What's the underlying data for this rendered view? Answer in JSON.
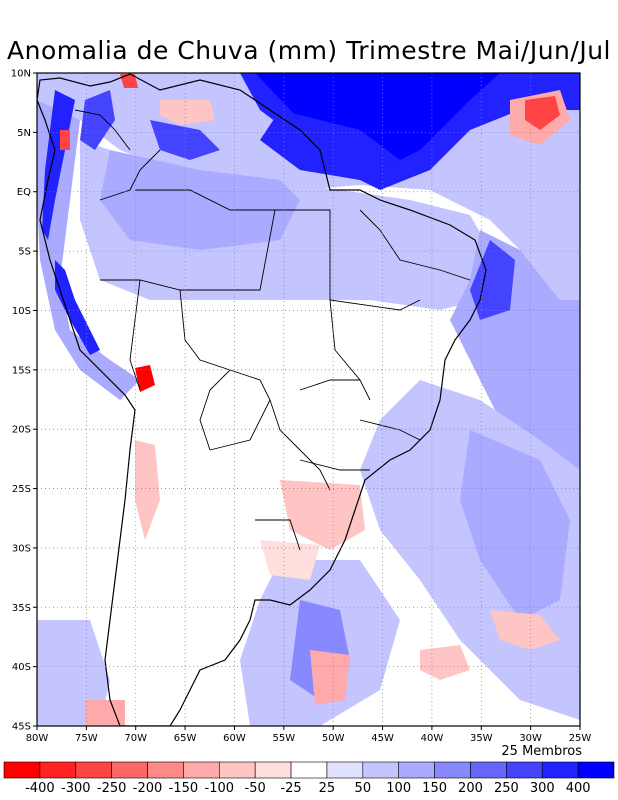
{
  "title": "Anomalia de Chuva (mm) Trimestre Mai/Jun/Jul",
  "footer_note": "25 Membros",
  "map": {
    "lon_range": [
      -80,
      -25
    ],
    "lat_range": [
      -45,
      10
    ],
    "lon_ticks": [
      "80W",
      "75W",
      "70W",
      "65W",
      "60W",
      "55W",
      "50W",
      "45W",
      "40W",
      "35W",
      "30W",
      "25W"
    ],
    "lat_ticks": [
      "10N",
      "5N",
      "EQ",
      "5S",
      "10S",
      "15S",
      "20S",
      "25S",
      "30S",
      "35S",
      "40S",
      "45S"
    ]
  },
  "colorbar": {
    "labels": [
      "-400",
      "-300",
      "-250",
      "-200",
      "-150",
      "-100",
      "-50",
      "-25",
      "25",
      "50",
      "100",
      "150",
      "200",
      "250",
      "300",
      "400"
    ],
    "colors": [
      "#ff0000",
      "#ff2222",
      "#ff4444",
      "#ff6666",
      "#ff8888",
      "#ffaaaa",
      "#ffc4c4",
      "#ffdede",
      "#ffffff",
      "#e0e0ff",
      "#c4c4ff",
      "#aaaaff",
      "#8888ff",
      "#6666ff",
      "#4444ff",
      "#2222ff",
      "#0000ff"
    ]
  }
}
